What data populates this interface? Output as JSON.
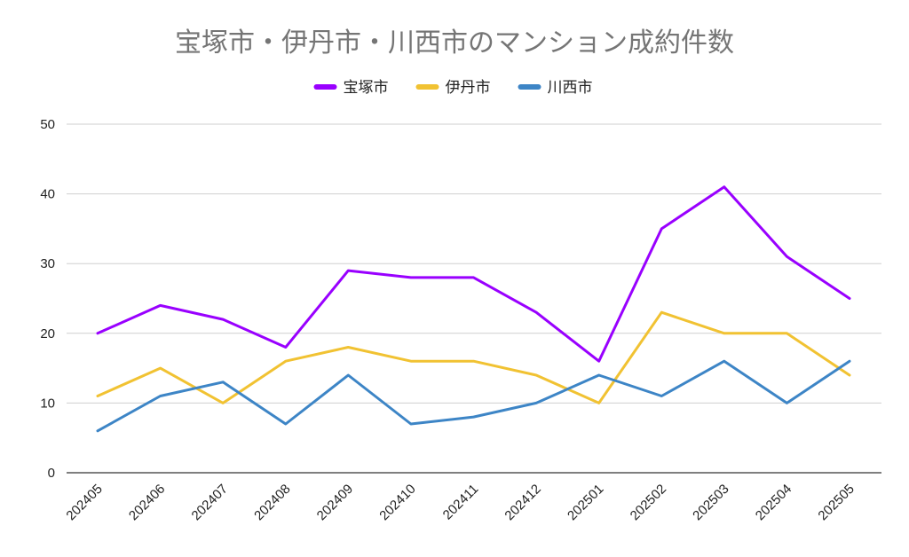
{
  "chart_data": {
    "type": "line",
    "title": "宝塚市・伊丹市・川西市のマンション成約件数",
    "xlabel": "",
    "ylabel": "",
    "categories": [
      "202405",
      "202406",
      "202407",
      "202408",
      "202409",
      "202410",
      "202411",
      "202412",
      "202501",
      "202502",
      "202503",
      "202504",
      "202505"
    ],
    "ylim": [
      0,
      50
    ],
    "yticks": [
      0,
      10,
      20,
      30,
      40,
      50
    ],
    "grid": true,
    "legend_position": "top-center",
    "series": [
      {
        "name": "宝塚市",
        "color": "#9900ff",
        "values": [
          20,
          24,
          22,
          18,
          29,
          28,
          28,
          23,
          16,
          35,
          41,
          31,
          25
        ]
      },
      {
        "name": "伊丹市",
        "color": "#f1c232",
        "values": [
          11,
          15,
          10,
          16,
          18,
          16,
          16,
          14,
          10,
          23,
          20,
          20,
          14
        ]
      },
      {
        "name": "川西市",
        "color": "#3d85c6",
        "values": [
          6,
          11,
          13,
          7,
          14,
          7,
          8,
          10,
          14,
          11,
          16,
          10,
          16
        ]
      }
    ]
  }
}
